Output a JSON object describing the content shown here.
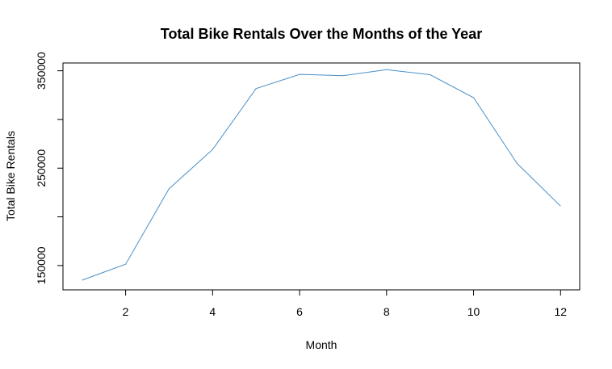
{
  "chart_data": {
    "type": "line",
    "title": "Total Bike Rentals Over the Months of the Year",
    "xlabel": "Month",
    "ylabel": "Total Bike Rentals",
    "x": [
      1,
      2,
      3,
      4,
      5,
      6,
      7,
      8,
      9,
      10,
      11,
      12
    ],
    "series": [
      {
        "values": [
          134933,
          151352,
          228920,
          269094,
          331686,
          346342,
          344948,
          351194,
          345991,
          322352,
          254831,
          211036
        ],
        "color": "#4a90c8"
      }
    ],
    "xlim": [
      0.56,
      12.44
    ],
    "ylim": [
      125000,
      358000
    ],
    "xticks": [
      2,
      4,
      6,
      8,
      10,
      12
    ],
    "xtick_labels": [
      "2",
      "4",
      "6",
      "8",
      "10",
      "12"
    ],
    "yticks": [
      150000,
      200000,
      250000,
      300000,
      350000
    ],
    "ytick_labels": [
      "150000",
      "",
      "250000",
      "",
      "350000"
    ],
    "grid": false,
    "legend": "none"
  }
}
